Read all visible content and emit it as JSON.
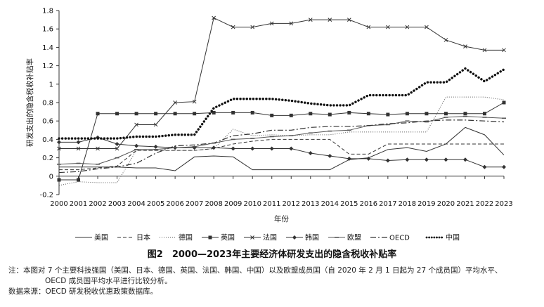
{
  "chart_data": {
    "type": "line",
    "ylabel": "研发支出的隐含税收补贴率",
    "xlabel": "年份",
    "x": [
      2000,
      2001,
      2002,
      2003,
      2004,
      2005,
      2006,
      2007,
      2008,
      2009,
      2010,
      2011,
      2012,
      2013,
      2014,
      2015,
      2016,
      2017,
      2018,
      2019,
      2020,
      2021,
      2022,
      2023
    ],
    "ylim": [
      -0.2,
      1.8
    ],
    "yticks": [
      "-0.2",
      "0",
      "0.2",
      "0.4",
      "0.6",
      "0.8",
      "1",
      "1.2",
      "1.4",
      "1.6",
      "1.8"
    ],
    "grid": false,
    "legend_position": "bottom",
    "series": [
      {
        "name": "美国",
        "style": "solid",
        "color": "#333333",
        "values": [
          0.1,
          0.1,
          0.1,
          0.1,
          0.09,
          0.09,
          0.06,
          0.21,
          0.22,
          0.21,
          0.07,
          0.07,
          0.07,
          0.07,
          0.07,
          0.18,
          0.2,
          0.29,
          0.31,
          0.27,
          0.35,
          0.53,
          0.45,
          0.23
        ]
      },
      {
        "name": "日本",
        "style": "dashed",
        "color": "#333333",
        "values": [
          0.07,
          0.07,
          0.09,
          0.11,
          0.28,
          0.28,
          0.28,
          0.28,
          0.3,
          0.35,
          0.38,
          0.4,
          0.4,
          0.4,
          0.4,
          0.24,
          0.24,
          0.35,
          0.35,
          0.35,
          0.35,
          0.35,
          0.35,
          0.35
        ]
      },
      {
        "name": "德国",
        "style": "dotted",
        "color": "#555555",
        "values": [
          -0.1,
          -0.06,
          -0.07,
          -0.07,
          0.28,
          0.28,
          0.28,
          0.28,
          0.3,
          0.51,
          0.44,
          0.45,
          0.44,
          0.45,
          0.45,
          0.48,
          0.48,
          0.48,
          0.48,
          0.48,
          0.86,
          0.86,
          0.86,
          0.83
        ]
      },
      {
        "name": "英国",
        "style": "solid",
        "marker": "square",
        "color": "#333333",
        "values": [
          -0.04,
          -0.04,
          0.68,
          0.68,
          0.68,
          0.68,
          0.68,
          0.68,
          0.69,
          0.69,
          0.69,
          0.66,
          0.66,
          0.68,
          0.67,
          0.69,
          0.68,
          0.67,
          0.68,
          0.68,
          0.68,
          0.68,
          0.68,
          0.8
        ]
      },
      {
        "name": "法国",
        "style": "solid",
        "marker": "x",
        "color": "#333333",
        "values": [
          0.3,
          0.3,
          0.3,
          0.3,
          0.56,
          0.56,
          0.8,
          0.81,
          1.72,
          1.62,
          1.62,
          1.66,
          1.66,
          1.7,
          1.7,
          1.7,
          1.62,
          1.62,
          1.62,
          1.62,
          1.48,
          1.41,
          1.37,
          1.37
        ]
      },
      {
        "name": "韩国",
        "style": "solid",
        "marker": "diamond",
        "color": "#333333",
        "values": [
          0.37,
          0.37,
          0.42,
          0.35,
          0.33,
          0.32,
          0.31,
          0.31,
          0.31,
          0.3,
          0.3,
          0.3,
          0.3,
          0.25,
          0.22,
          0.19,
          0.19,
          0.17,
          0.18,
          0.18,
          0.18,
          0.18,
          0.1,
          0.1
        ]
      },
      {
        "name": "欧盟",
        "style": "solid",
        "marker": "dash",
        "color": "#555555",
        "values": [
          0.13,
          0.14,
          0.13,
          0.2,
          0.29,
          0.29,
          0.31,
          0.32,
          0.36,
          0.4,
          0.41,
          0.43,
          0.44,
          0.47,
          0.49,
          0.5,
          0.55,
          0.56,
          0.6,
          0.59,
          0.64,
          0.65,
          0.64,
          0.63
        ]
      },
      {
        "name": "OECD",
        "style": "dashdot",
        "color": "#333333",
        "values": [
          0.04,
          0.05,
          0.08,
          0.1,
          0.14,
          0.25,
          0.33,
          0.34,
          0.36,
          0.44,
          0.46,
          0.5,
          0.5,
          0.53,
          0.54,
          0.54,
          0.55,
          0.57,
          0.58,
          0.6,
          0.61,
          0.61,
          0.6,
          0.59
        ]
      },
      {
        "name": "中国",
        "style": "heavy-dotted",
        "color": "#111111",
        "values": [
          0.41,
          0.41,
          0.41,
          0.41,
          0.43,
          0.43,
          0.45,
          0.45,
          0.74,
          0.84,
          0.84,
          0.84,
          0.82,
          0.79,
          0.77,
          0.77,
          0.88,
          0.88,
          0.88,
          1.02,
          1.02,
          1.17,
          1.03,
          1.16
        ]
      }
    ]
  },
  "caption": "图2　2000—2023年主要经济体研发支出的隐含税收补贴率",
  "note_line1": "注：本图对 7 个主要科技强国（美国、日本、德国、英国、法国、韩国、中国）以及欧盟成员国（自 2020 年 2 月 1 日起为 27 个成员国）平均水平、",
  "note_line2": "OECD 成员国平均水平进行比较分析。",
  "source": "数据来源：OECD 研发税收优惠政策数据库。"
}
